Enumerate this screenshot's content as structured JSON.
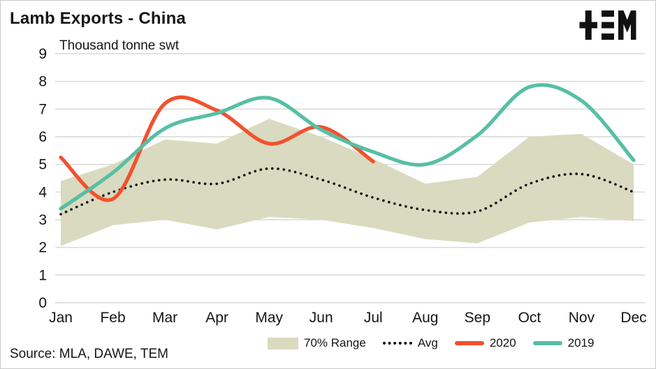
{
  "header": {
    "title": "Lamb Exports - China",
    "subtitle": "Thousand tonne swt",
    "logo_name": "TEM logo"
  },
  "footer": {
    "source": "Source: MLA, DAWE, TEM"
  },
  "colors": {
    "band": "#d9dabf",
    "avg": "#111111",
    "y2020": "#f2512e",
    "y2019": "#57bfa4",
    "grid": "#d7d7d3",
    "text": "#161616",
    "logo": "#111111"
  },
  "legend": [
    {
      "label": "70% Range",
      "type": "band",
      "color": "#d9dabf"
    },
    {
      "label": "Avg",
      "type": "dotted",
      "color": "#111111"
    },
    {
      "label": "2020",
      "type": "line",
      "color": "#f2512e"
    },
    {
      "label": "2019",
      "type": "line",
      "color": "#57bfa4"
    }
  ],
  "chart_data": {
    "type": "line",
    "title": "Lamb Exports - China",
    "ylabel": "Thousand tonne swt",
    "xlabel": "",
    "categories": [
      "Jan",
      "Feb",
      "Mar",
      "Apr",
      "May",
      "Jun",
      "Jul",
      "Aug",
      "Sep",
      "Oct",
      "Nov",
      "Dec"
    ],
    "ylim": [
      0,
      9
    ],
    "yticks": [
      0,
      1,
      2,
      3,
      4,
      5,
      6,
      7,
      8,
      9
    ],
    "grid": true,
    "legend_position": "bottom",
    "band": {
      "name": "70% Range",
      "color": "#d9dabf",
      "upper": [
        4.4,
        5.0,
        5.9,
        5.75,
        6.65,
        6.0,
        5.2,
        4.3,
        4.55,
        6.0,
        6.1,
        5.0
      ],
      "lower": [
        2.05,
        2.8,
        3.0,
        2.65,
        3.1,
        3.0,
        2.7,
        2.3,
        2.15,
        2.9,
        3.1,
        2.95
      ]
    },
    "series": [
      {
        "name": "Avg",
        "style": "dotted",
        "color": "#111111",
        "values": [
          3.2,
          4.0,
          4.45,
          4.3,
          4.85,
          4.45,
          3.8,
          3.35,
          3.3,
          4.3,
          4.65,
          4.0
        ]
      },
      {
        "name": "2020",
        "style": "solid",
        "color": "#f2512e",
        "values": [
          5.25,
          3.75,
          7.2,
          6.95,
          5.75,
          6.35,
          5.1,
          null,
          null,
          null,
          null,
          null
        ]
      },
      {
        "name": "2019",
        "style": "solid",
        "color": "#57bfa4",
        "values": [
          3.4,
          4.7,
          6.3,
          6.85,
          7.4,
          6.25,
          5.45,
          5.0,
          6.05,
          7.8,
          7.3,
          5.15
        ]
      }
    ]
  }
}
